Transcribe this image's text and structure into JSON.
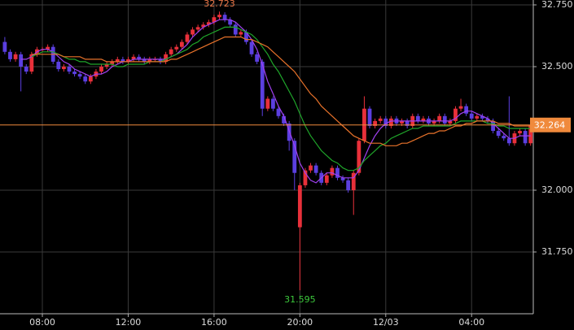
{
  "chart_data": {
    "type": "candlestick",
    "categories": [
      null,
      null,
      null,
      null,
      null,
      null,
      null,
      "08:00",
      null,
      null,
      null,
      null,
      null,
      null,
      null,
      null,
      null,
      null,
      null,
      null,
      null,
      null,
      null,
      "12:00",
      null,
      null,
      null,
      null,
      null,
      null,
      null,
      null,
      null,
      null,
      null,
      null,
      null,
      null,
      null,
      "16:00",
      null,
      null,
      null,
      null,
      null,
      null,
      null,
      null,
      null,
      null,
      null,
      null,
      null,
      null,
      null,
      "20:00",
      null,
      null,
      null,
      null,
      null,
      null,
      null,
      null,
      null,
      null,
      null,
      null,
      null,
      null,
      null,
      "12/03",
      null,
      null,
      null,
      null,
      null,
      null,
      null,
      null,
      null,
      null,
      null,
      null,
      null,
      null,
      null,
      "04:00",
      null,
      null,
      null,
      null,
      null,
      null,
      null,
      null,
      null,
      null,
      null
    ],
    "open": [
      32.6,
      32.56,
      32.53,
      32.55,
      32.5,
      32.48,
      32.55,
      32.57,
      32.57,
      32.58,
      32.52,
      32.49,
      32.5,
      32.48,
      32.47,
      32.46,
      32.44,
      32.46,
      32.48,
      32.5,
      32.51,
      32.52,
      32.53,
      32.52,
      32.53,
      32.54,
      32.53,
      32.52,
      32.53,
      32.53,
      32.52,
      32.55,
      32.57,
      32.58,
      32.6,
      32.63,
      32.65,
      32.66,
      32.67,
      32.68,
      32.7,
      32.71,
      32.69,
      32.67,
      32.63,
      32.64,
      32.6,
      32.55,
      32.52,
      32.33,
      32.37,
      32.33,
      32.3,
      32.27,
      32.2,
      31.85,
      32.02,
      32.08,
      32.1,
      32.07,
      32.03,
      32.06,
      32.09,
      32.05,
      32.04,
      32.0,
      32.07,
      32.2,
      32.33,
      32.26,
      32.28,
      32.29,
      32.26,
      32.29,
      32.27,
      32.28,
      32.26,
      32.3,
      32.28,
      32.29,
      32.27,
      32.28,
      32.3,
      32.27,
      32.28,
      32.33,
      32.34,
      32.31,
      32.29,
      32.3,
      32.29,
      32.28,
      32.24,
      32.22,
      32.21,
      32.19,
      32.23,
      32.24,
      32.19
    ],
    "high": [
      32.62,
      32.57,
      32.56,
      32.56,
      32.51,
      32.56,
      32.58,
      32.58,
      32.59,
      32.59,
      32.53,
      32.51,
      32.51,
      32.49,
      32.48,
      32.47,
      32.47,
      32.49,
      32.51,
      32.52,
      32.53,
      32.54,
      32.54,
      32.54,
      32.55,
      32.55,
      32.54,
      32.54,
      32.54,
      32.54,
      32.56,
      32.58,
      32.59,
      32.61,
      32.64,
      32.66,
      32.67,
      32.68,
      32.69,
      32.71,
      32.723,
      32.72,
      32.7,
      32.68,
      32.65,
      32.65,
      32.61,
      32.56,
      32.53,
      32.38,
      32.38,
      32.34,
      32.31,
      32.28,
      32.21,
      32.03,
      32.09,
      32.11,
      32.11,
      32.08,
      32.07,
      32.1,
      32.1,
      32.06,
      32.05,
      32.08,
      32.21,
      32.38,
      32.34,
      32.29,
      32.3,
      32.3,
      32.3,
      32.3,
      32.29,
      32.29,
      32.31,
      32.31,
      32.3,
      32.3,
      32.29,
      32.31,
      32.31,
      32.29,
      32.34,
      32.37,
      32.35,
      32.32,
      32.31,
      32.31,
      32.3,
      32.29,
      32.25,
      32.23,
      32.38,
      32.24,
      32.25,
      32.25,
      32.27
    ],
    "low": [
      32.55,
      32.52,
      32.52,
      32.4,
      32.47,
      32.47,
      32.54,
      32.56,
      32.56,
      32.51,
      32.48,
      32.48,
      32.47,
      32.46,
      32.45,
      32.43,
      32.43,
      32.45,
      32.47,
      32.49,
      32.5,
      32.51,
      32.51,
      32.51,
      32.52,
      32.52,
      32.51,
      32.51,
      32.52,
      32.51,
      32.51,
      32.54,
      32.56,
      32.57,
      32.59,
      32.62,
      32.64,
      32.65,
      32.66,
      32.67,
      32.69,
      32.68,
      32.66,
      32.62,
      32.62,
      32.59,
      32.54,
      32.51,
      32.3,
      32.32,
      32.32,
      32.29,
      32.26,
      32.16,
      32.0,
      31.595,
      32.01,
      32.07,
      32.06,
      32.02,
      32.02,
      32.05,
      32.04,
      32.03,
      31.99,
      31.9,
      32.06,
      32.19,
      32.25,
      32.25,
      32.27,
      32.25,
      32.25,
      32.26,
      32.26,
      32.25,
      32.25,
      32.27,
      32.27,
      32.26,
      32.26,
      32.27,
      32.26,
      32.26,
      32.27,
      32.32,
      32.3,
      32.28,
      32.28,
      32.28,
      32.27,
      32.23,
      32.21,
      32.2,
      32.18,
      32.18,
      32.22,
      32.18,
      32.18
    ],
    "close": [
      32.56,
      32.53,
      32.55,
      32.5,
      32.48,
      32.55,
      32.57,
      32.57,
      32.58,
      32.52,
      32.49,
      32.5,
      32.48,
      32.47,
      32.46,
      32.44,
      32.46,
      32.48,
      32.5,
      32.51,
      32.52,
      32.53,
      32.52,
      32.53,
      32.54,
      32.53,
      32.52,
      32.53,
      32.53,
      32.52,
      32.55,
      32.57,
      32.58,
      32.6,
      32.63,
      32.65,
      32.66,
      32.67,
      32.68,
      32.7,
      32.71,
      32.69,
      32.67,
      32.63,
      32.64,
      32.6,
      32.55,
      32.52,
      32.33,
      32.37,
      32.33,
      32.3,
      32.27,
      32.2,
      32.07,
      32.02,
      32.08,
      32.1,
      32.07,
      32.03,
      32.06,
      32.09,
      32.05,
      32.04,
      32.0,
      32.07,
      32.2,
      32.33,
      32.26,
      32.28,
      32.29,
      32.26,
      32.29,
      32.27,
      32.28,
      32.26,
      32.3,
      32.28,
      32.29,
      32.27,
      32.28,
      32.3,
      32.27,
      32.28,
      32.33,
      32.34,
      32.31,
      32.29,
      32.3,
      32.29,
      32.28,
      32.24,
      32.22,
      32.21,
      32.19,
      32.23,
      32.24,
      32.19,
      32.264
    ],
    "up_color": "#e8303a",
    "down_color": "#5b3fe0",
    "lines": [
      {
        "color": "#a040f0",
        "values": [
          null,
          null,
          null,
          32.53,
          32.53,
          32.54,
          32.56,
          32.57,
          32.57,
          32.56,
          32.54,
          32.52,
          32.51,
          32.49,
          32.48,
          32.47,
          32.46,
          32.47,
          32.47,
          32.48,
          32.5,
          32.51,
          32.52,
          32.52,
          32.53,
          32.53,
          32.53,
          32.53,
          32.53,
          32.53,
          32.53,
          32.54,
          32.55,
          32.57,
          32.59,
          32.62,
          32.64,
          32.66,
          32.67,
          32.68,
          32.69,
          32.69,
          32.69,
          32.68,
          32.66,
          32.64,
          32.61,
          32.57,
          32.51,
          32.44,
          32.39,
          32.34,
          32.3,
          32.24,
          32.18,
          32.11,
          32.07,
          32.04,
          32.03,
          32.05,
          32.07,
          32.07,
          32.06,
          32.05,
          32.05,
          32.05,
          32.08,
          32.13,
          32.18,
          32.22,
          32.25,
          32.27,
          32.28,
          32.28,
          32.28,
          32.28,
          32.28,
          32.28,
          32.28,
          32.28,
          32.28,
          32.28,
          32.28,
          32.28,
          32.29,
          32.31,
          32.32,
          32.32,
          32.31,
          32.3,
          32.29,
          32.27,
          32.25,
          32.23,
          32.21,
          32.21,
          32.22,
          32.22,
          32.22
        ]
      },
      {
        "color": "#1fa52a",
        "values": [
          null,
          null,
          null,
          null,
          null,
          32.54,
          32.55,
          32.56,
          32.56,
          32.56,
          32.55,
          32.54,
          32.53,
          32.53,
          32.52,
          32.52,
          32.51,
          32.51,
          32.51,
          32.51,
          32.51,
          32.5,
          32.5,
          32.51,
          32.51,
          32.51,
          32.51,
          32.52,
          32.52,
          32.52,
          32.53,
          32.54,
          32.55,
          32.56,
          32.57,
          32.59,
          32.6,
          32.62,
          32.63,
          32.64,
          32.65,
          32.66,
          32.66,
          32.66,
          32.65,
          32.64,
          32.63,
          32.61,
          32.58,
          32.55,
          32.51,
          32.48,
          32.44,
          32.4,
          32.36,
          32.31,
          32.26,
          32.22,
          32.19,
          32.16,
          32.14,
          32.12,
          32.11,
          32.09,
          32.08,
          32.08,
          32.09,
          32.12,
          32.14,
          32.16,
          32.18,
          32.19,
          32.21,
          32.22,
          32.23,
          32.24,
          32.25,
          32.25,
          32.26,
          32.26,
          32.26,
          32.26,
          32.26,
          32.26,
          32.27,
          32.28,
          32.28,
          32.28,
          32.28,
          32.28,
          32.27,
          32.27,
          32.26,
          32.26,
          32.25,
          32.25,
          32.25,
          32.25,
          32.25
        ]
      },
      {
        "color": "#e8722a",
        "values": [
          null,
          null,
          null,
          null,
          null,
          32.55,
          32.55,
          32.55,
          32.55,
          32.55,
          32.55,
          32.54,
          32.54,
          32.54,
          32.54,
          32.53,
          32.53,
          32.53,
          32.53,
          32.52,
          32.52,
          32.52,
          32.52,
          32.52,
          32.52,
          32.52,
          32.52,
          32.52,
          32.52,
          32.52,
          32.52,
          32.53,
          32.53,
          32.54,
          32.55,
          32.56,
          32.57,
          32.58,
          32.59,
          32.6,
          32.61,
          32.62,
          32.62,
          32.62,
          32.62,
          32.61,
          32.61,
          32.6,
          32.59,
          32.58,
          32.56,
          32.54,
          32.52,
          32.5,
          32.48,
          32.45,
          32.42,
          32.39,
          32.37,
          32.34,
          32.32,
          32.3,
          32.28,
          32.26,
          32.24,
          32.22,
          32.21,
          32.2,
          32.19,
          32.19,
          32.19,
          32.18,
          32.18,
          32.18,
          32.19,
          32.19,
          32.2,
          32.21,
          32.22,
          32.23,
          32.23,
          32.24,
          32.24,
          32.25,
          32.26,
          32.26,
          32.27,
          32.27,
          32.28,
          32.28,
          32.28,
          32.28,
          32.27,
          32.27,
          32.27,
          32.26,
          32.26,
          32.26,
          32.26
        ]
      }
    ],
    "last_color": "#f08a3c",
    "high_label_color": "#f07a4a",
    "low_label_color": "#3cc83c",
    "ylim": [
      31.5,
      32.75
    ],
    "yticks": [
      {
        "value": 31.75,
        "label": "31.750"
      },
      {
        "value": 32,
        "label": "32.000"
      },
      {
        "value": 32.5,
        "label": "32.500"
      },
      {
        "value": 32.75,
        "label": "32.750"
      }
    ],
    "grid": true
  }
}
